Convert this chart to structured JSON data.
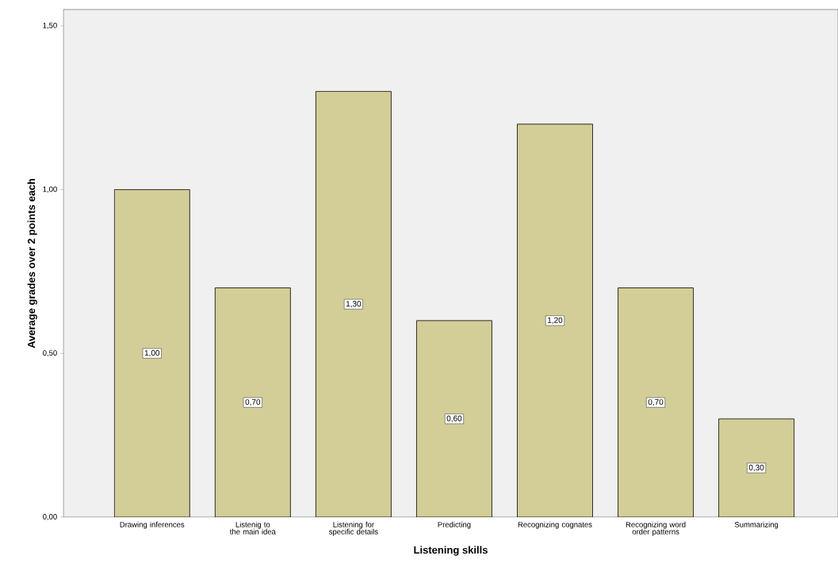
{
  "chart_data": {
    "type": "bar",
    "xlabel": "Listening skills",
    "ylabel": "Average grades over 2 points each",
    "categories": [
      "Drawing inferences",
      "Listenig to the main idea",
      "Listening for specific details",
      "Predicting",
      "Recognizing cognates",
      "Recognizing word order patterns",
      "Summarizing"
    ],
    "values": [
      1.0,
      0.7,
      1.3,
      0.6,
      1.2,
      0.7,
      0.3
    ],
    "value_labels": [
      "1,00",
      "0,70",
      "1,30",
      "0,60",
      "1,20",
      "0,70",
      "0,30"
    ],
    "color": "#d3ce97",
    "ylim": [
      0,
      1.55
    ],
    "yticks": [
      {
        "value": 0,
        "label": "0,00"
      },
      {
        "value": 0.5,
        "label": "0,50"
      },
      {
        "value": 1.0,
        "label": "1,00"
      },
      {
        "value": 1.5,
        "label": "1,50"
      }
    ]
  }
}
